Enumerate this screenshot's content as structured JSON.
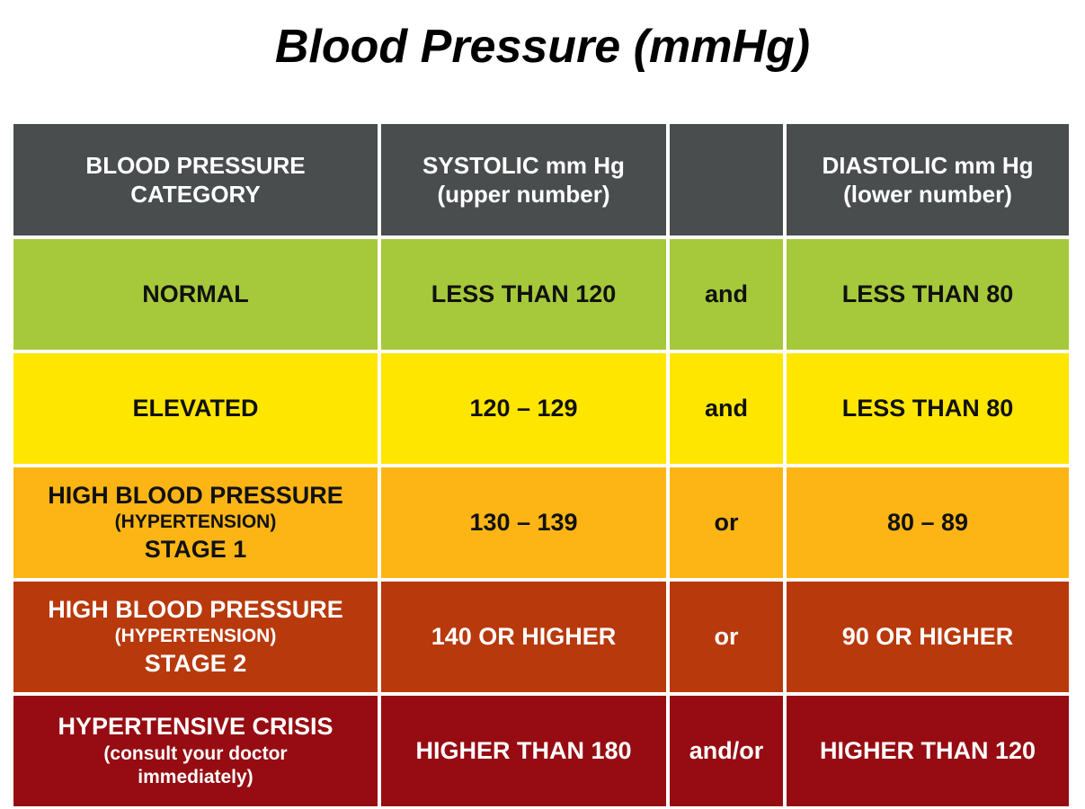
{
  "title": "Blood Pressure (mmHg)",
  "header": {
    "category": [
      "BLOOD PRESSURE",
      "CATEGORY"
    ],
    "systolic": [
      "SYSTOLIC mm Hg",
      "(upper number)"
    ],
    "connector": "",
    "diastolic": [
      "DIASTOLIC mm Hg",
      "(lower number)"
    ]
  },
  "rows": [
    {
      "category": [
        "NORMAL"
      ],
      "systolic": "LESS THAN 120",
      "connector": "and",
      "diastolic": "LESS THAN 80",
      "color": "#a5c93a"
    },
    {
      "category": [
        "ELEVATED"
      ],
      "systolic": "120 – 129",
      "connector": "and",
      "diastolic": "LESS THAN 80",
      "color": "#ffe600"
    },
    {
      "category": [
        "HIGH BLOOD PRESSURE",
        "(HYPERTENSION)",
        "STAGE 1"
      ],
      "systolic": "130 – 139",
      "connector": "or",
      "diastolic": "80 – 89",
      "color": "#fdb515"
    },
    {
      "category": [
        "HIGH BLOOD PRESSURE",
        "(HYPERTENSION)",
        "STAGE 2"
      ],
      "systolic": "140 OR HIGHER",
      "connector": "or",
      "diastolic": "90 OR HIGHER",
      "color": "#b8390c"
    },
    {
      "category": [
        "HYPERTENSIVE CRISIS",
        "(consult your doctor",
        "immediately)"
      ],
      "systolic": "HIGHER THAN 180",
      "connector": "and/or",
      "diastolic": "HIGHER THAN 120",
      "color": "#960c12"
    }
  ]
}
